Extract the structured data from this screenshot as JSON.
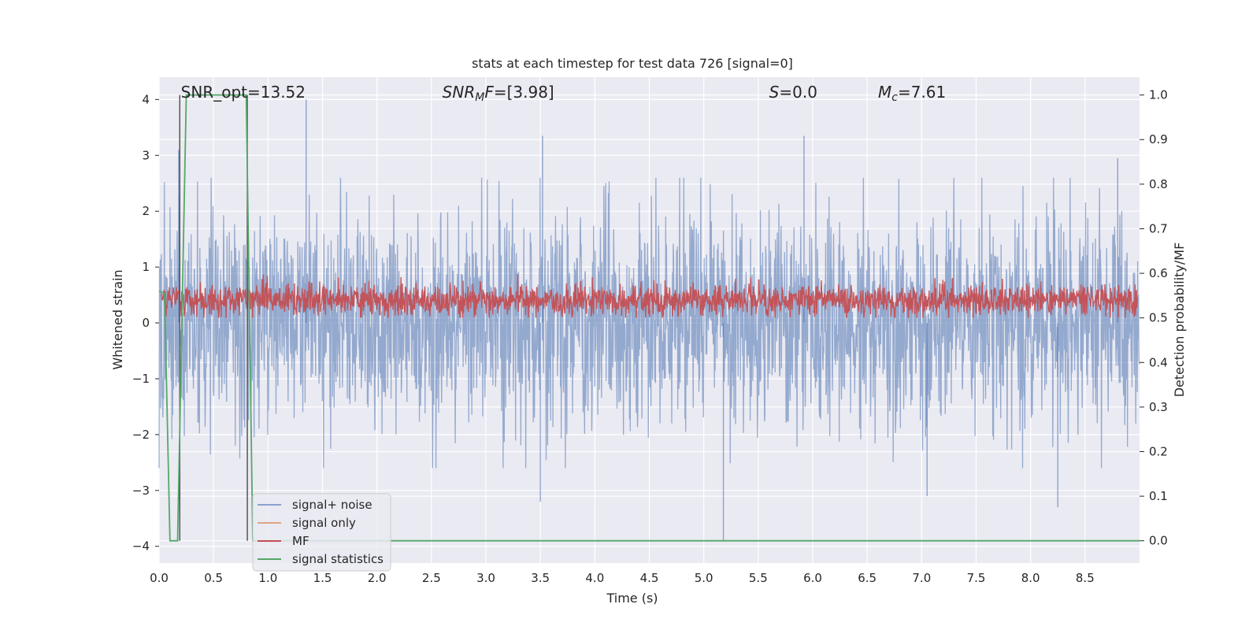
{
  "chart_data": {
    "type": "line",
    "title": "stats at each timestep for test data 726 [signal=0]",
    "xlabel": "Time (s)",
    "ylabel_left": "Whitened strain",
    "ylabel_right": "Detection probability/MF",
    "xlim": [
      0.0,
      9.0
    ],
    "ylim_left": [
      -4.3,
      4.4
    ],
    "ylim_right": [
      -0.05,
      1.04
    ],
    "x_ticks": [
      "0.0",
      "0.5",
      "1.0",
      "1.5",
      "2.0",
      "2.5",
      "3.0",
      "3.5",
      "4.0",
      "4.5",
      "5.0",
      "5.5",
      "6.0",
      "6.5",
      "7.0",
      "7.5",
      "8.0",
      "8.5"
    ],
    "y_ticks_left": [
      "−4",
      "−3",
      "−2",
      "−1",
      "0",
      "1",
      "2",
      "3",
      "4"
    ],
    "y_ticks_right": [
      "0.0",
      "0.1",
      "0.2",
      "0.3",
      "0.4",
      "0.5",
      "0.6",
      "0.7",
      "0.8",
      "0.9",
      "1.0"
    ],
    "grid": true,
    "legend_position": "lower-left",
    "annotations": [
      {
        "text": "SNR_opt=13.52",
        "x": 0.2
      },
      {
        "text": "SNR_MF=[3.98]",
        "x": 2.6
      },
      {
        "text": "S=0.0",
        "x": 5.6
      },
      {
        "text": "M_c=7.61",
        "x": 6.6
      }
    ],
    "vertical_lines": [
      0.19,
      0.81
    ],
    "series": [
      {
        "name": "signal+ noise",
        "axis": "left",
        "color": "#4c72b0",
        "description": "whitened strain noise, roughly symmetric about 0, amplitude mostly within ±2.5 with peaks near 4",
        "envelope": {
          "upper": 2.4,
          "lower": -2.4
        },
        "spikes": [
          [
            0.18,
            3.1
          ],
          [
            1.35,
            4.0
          ],
          [
            3.52,
            3.35
          ],
          [
            5.18,
            -3.9
          ],
          [
            5.92,
            3.35
          ],
          [
            3.5,
            -3.2
          ],
          [
            7.05,
            -3.1
          ],
          [
            8.25,
            -3.3
          ],
          [
            8.8,
            2.95
          ]
        ]
      },
      {
        "name": "signal only",
        "axis": "left",
        "color": "#dd8452",
        "values": []
      },
      {
        "name": "MF",
        "axis": "right",
        "color": "#c44e52",
        "description": "matched-filter output fluctuating between about 0.50 and 0.59",
        "mean": 0.54,
        "range": [
          0.5,
          0.6
        ]
      },
      {
        "name": "signal statistics",
        "axis": "right",
        "color": "#55a868",
        "x": [
          0.0,
          0.05,
          0.1,
          0.12,
          0.17,
          0.25,
          0.8,
          0.86,
          9.0
        ],
        "y": [
          0.56,
          0.555,
          0.0,
          0.0,
          0.0,
          1.0,
          1.0,
          0.0,
          0.0
        ]
      }
    ]
  }
}
